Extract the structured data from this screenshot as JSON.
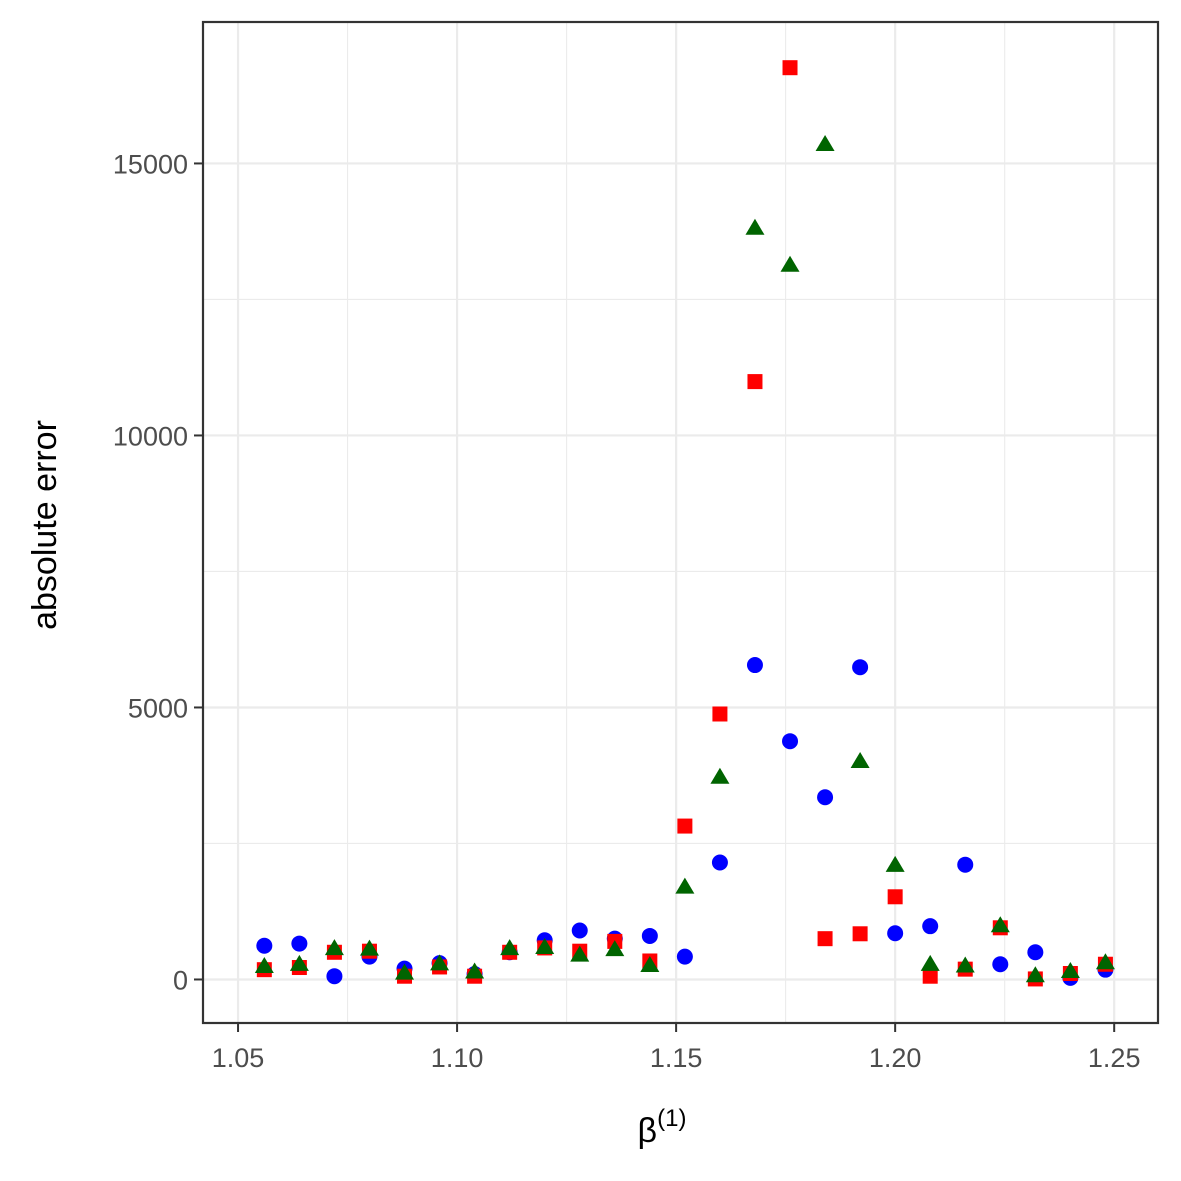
{
  "chart_data": {
    "type": "scatter",
    "title": "",
    "xlabel": "β",
    "xlabel_superscript": "(1)",
    "ylabel": "absolute error",
    "xlim": [
      1.042,
      1.26
    ],
    "ylim": [
      -800,
      17600
    ],
    "x_ticks": [
      1.05,
      1.1,
      1.15,
      1.2,
      1.25
    ],
    "x_tick_labels": [
      "1.05",
      "1.10",
      "1.15",
      "1.20",
      "1.25"
    ],
    "y_ticks": [
      0,
      5000,
      10000,
      15000
    ],
    "y_tick_labels": [
      "0",
      "5000",
      "10000",
      "15000"
    ],
    "grid": true,
    "legend": "none",
    "series": [
      {
        "marker": "circle",
        "color": "#0000ff",
        "points": [
          [
            1.056,
            620
          ],
          [
            1.064,
            660
          ],
          [
            1.072,
            60
          ],
          [
            1.08,
            420
          ],
          [
            1.088,
            200
          ],
          [
            1.096,
            300
          ],
          [
            1.104,
            100
          ],
          [
            1.112,
            500
          ],
          [
            1.12,
            720
          ],
          [
            1.128,
            900
          ],
          [
            1.136,
            750
          ],
          [
            1.144,
            800
          ],
          [
            1.152,
            420
          ],
          [
            1.16,
            2150
          ],
          [
            1.168,
            5780
          ],
          [
            1.176,
            4380
          ],
          [
            1.184,
            3350
          ],
          [
            1.192,
            5740
          ],
          [
            1.2,
            850
          ],
          [
            1.208,
            980
          ],
          [
            1.216,
            2110
          ],
          [
            1.224,
            280
          ],
          [
            1.232,
            500
          ],
          [
            1.24,
            30
          ],
          [
            1.248,
            180
          ]
        ]
      },
      {
        "marker": "square",
        "color": "#ff0000",
        "points": [
          [
            1.056,
            180
          ],
          [
            1.064,
            220
          ],
          [
            1.072,
            500
          ],
          [
            1.08,
            520
          ],
          [
            1.088,
            60
          ],
          [
            1.096,
            230
          ],
          [
            1.104,
            60
          ],
          [
            1.112,
            500
          ],
          [
            1.12,
            580
          ],
          [
            1.128,
            520
          ],
          [
            1.136,
            700
          ],
          [
            1.144,
            340
          ],
          [
            1.152,
            2820
          ],
          [
            1.16,
            4880
          ],
          [
            1.168,
            10990
          ],
          [
            1.176,
            16760
          ],
          [
            1.184,
            750
          ],
          [
            1.192,
            840
          ],
          [
            1.2,
            1520
          ],
          [
            1.208,
            60
          ],
          [
            1.216,
            190
          ],
          [
            1.224,
            950
          ],
          [
            1.232,
            10
          ],
          [
            1.24,
            110
          ],
          [
            1.248,
            280
          ]
        ]
      },
      {
        "marker": "triangle",
        "color": "#006400",
        "points": [
          [
            1.056,
            230
          ],
          [
            1.064,
            270
          ],
          [
            1.072,
            560
          ],
          [
            1.08,
            550
          ],
          [
            1.088,
            110
          ],
          [
            1.096,
            280
          ],
          [
            1.104,
            130
          ],
          [
            1.112,
            560
          ],
          [
            1.12,
            580
          ],
          [
            1.128,
            440
          ],
          [
            1.136,
            540
          ],
          [
            1.144,
            250
          ],
          [
            1.152,
            1690
          ],
          [
            1.16,
            3710
          ],
          [
            1.168,
            13800
          ],
          [
            1.176,
            13120
          ],
          [
            1.184,
            15340
          ],
          [
            1.192,
            4000
          ],
          [
            1.2,
            2090
          ],
          [
            1.208,
            270
          ],
          [
            1.216,
            240
          ],
          [
            1.224,
            980
          ],
          [
            1.232,
            60
          ],
          [
            1.24,
            140
          ],
          [
            1.248,
            300
          ]
        ]
      }
    ]
  }
}
